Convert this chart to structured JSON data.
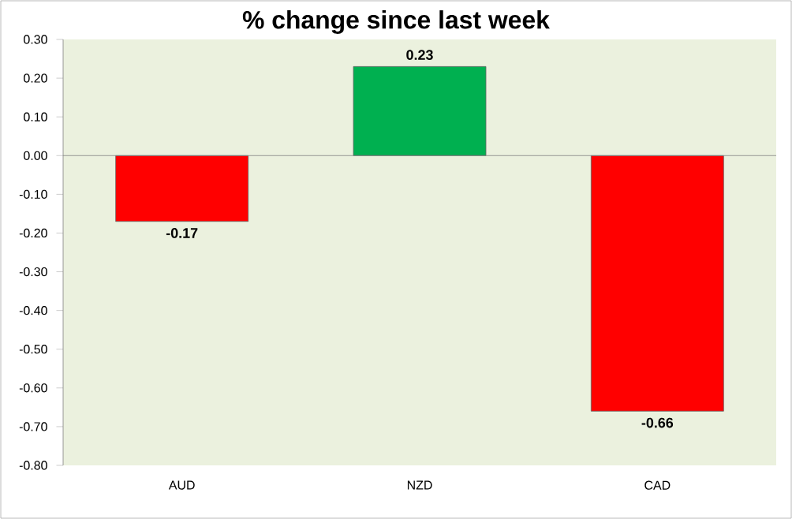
{
  "chart_data": {
    "type": "bar",
    "title": "% change since last week",
    "categories": [
      "AUD",
      "NZD",
      "CAD"
    ],
    "values": [
      -0.17,
      0.23,
      -0.66
    ],
    "colors": [
      "#ff0000",
      "#00b050",
      "#ff0000"
    ],
    "value_labels": [
      "-0.17",
      "0.23",
      "-0.66"
    ],
    "ylim": [
      -0.8,
      0.3
    ],
    "yticks": [
      {
        "value": -0.8,
        "label": "-0.80"
      },
      {
        "value": -0.7,
        "label": "-0.70"
      },
      {
        "value": -0.6,
        "label": "-0.60"
      },
      {
        "value": -0.5,
        "label": "-0.50"
      },
      {
        "value": -0.4,
        "label": "-0.40"
      },
      {
        "value": -0.3,
        "label": "-0.30"
      },
      {
        "value": -0.2,
        "label": "-0.20"
      },
      {
        "value": -0.1,
        "label": "-0.10"
      },
      {
        "value": 0,
        "label": "0.00"
      },
      {
        "value": 0.1,
        "label": "0.10"
      },
      {
        "value": 0.2,
        "label": "0.20"
      },
      {
        "value": 0.3,
        "label": "0.30"
      }
    ]
  }
}
